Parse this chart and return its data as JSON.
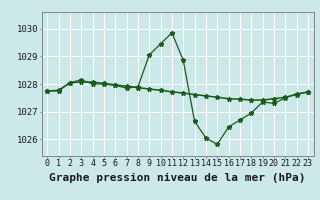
{
  "xlabel": "Graphe pression niveau de la mer (hPa)",
  "bg_color": "#cce8e8",
  "grid_color": "#ffffff",
  "line_color": "#1a5c1a",
  "ylim": [
    1025.4,
    1030.6
  ],
  "xlim": [
    -0.5,
    23.5
  ],
  "yticks": [
    1026,
    1027,
    1028,
    1029,
    1030
  ],
  "xticks": [
    0,
    1,
    2,
    3,
    4,
    5,
    6,
    7,
    8,
    9,
    10,
    11,
    12,
    13,
    14,
    15,
    16,
    17,
    18,
    19,
    20,
    21,
    22,
    23
  ],
  "series1_x": [
    0,
    1,
    2,
    3,
    4,
    5,
    6,
    7,
    8,
    9,
    10,
    11,
    12,
    13,
    14,
    15,
    16,
    17,
    18,
    19,
    20,
    21,
    22,
    23
  ],
  "series1_y": [
    1027.75,
    1027.75,
    1028.05,
    1028.15,
    1028.0,
    1028.0,
    1027.95,
    1027.85,
    1027.9,
    1029.05,
    1029.45,
    1029.85,
    1028.85,
    1026.65,
    1026.05,
    1025.82,
    1026.45,
    1026.7,
    1026.95,
    1027.35,
    1027.3,
    1027.5,
    1027.65,
    1027.7
  ],
  "series2_x": [
    0,
    1,
    2,
    3,
    4,
    5,
    6,
    7,
    8,
    9,
    10,
    11,
    12,
    13,
    14,
    15,
    16,
    17,
    18,
    19,
    20,
    21,
    22,
    23
  ],
  "series2_y": [
    1027.75,
    1027.77,
    1028.05,
    1028.07,
    1028.07,
    1028.02,
    1027.97,
    1027.92,
    1027.87,
    1027.82,
    1027.77,
    1027.72,
    1027.67,
    1027.62,
    1027.57,
    1027.52,
    1027.47,
    1027.45,
    1027.42,
    1027.42,
    1027.47,
    1027.52,
    1027.62,
    1027.72
  ],
  "xlabel_fontsize": 8,
  "tick_fontsize": 6.5,
  "marker": "*",
  "marker_size": 3.5,
  "linewidth1": 0.9,
  "linewidth2": 1.1
}
